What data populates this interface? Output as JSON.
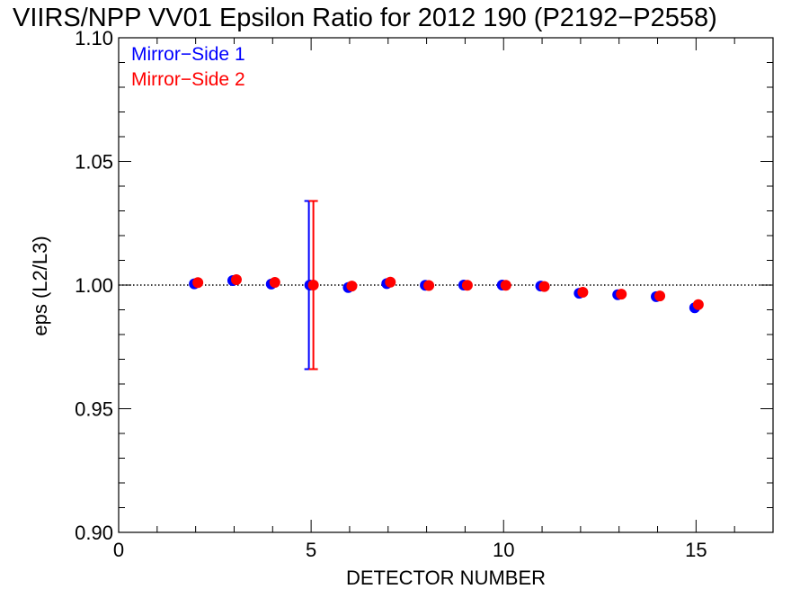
{
  "chart_data": {
    "type": "scatter",
    "title": "VIIRS/NPP VV01 Epsilon Ratio for 2012 190 (P2192−P2558)",
    "xlabel": "DETECTOR NUMBER",
    "ylabel": "eps (L2/L3)",
    "xlim": [
      0,
      17
    ],
    "ylim": [
      0.9,
      1.1
    ],
    "xticks": [
      0,
      5,
      10,
      15
    ],
    "xtick_labels": [
      "0",
      "5",
      "10",
      "15"
    ],
    "yticks": [
      0.9,
      0.95,
      1.0,
      1.05,
      1.1
    ],
    "ytick_labels": [
      "0.90",
      "0.95",
      "1.00",
      "1.05",
      "1.10"
    ],
    "reference_line": 1.0,
    "legend_position": "top-left",
    "series": [
      {
        "name": "Mirror−Side 1",
        "color": "#0000ff",
        "x": [
          2,
          3,
          4,
          5,
          6,
          7,
          8,
          9,
          10,
          11,
          12,
          13,
          14,
          15
        ],
        "y": [
          1.0005,
          1.0018,
          1.0004,
          1.0,
          0.999,
          1.0006,
          0.9999,
          1.0,
          1.0,
          0.9996,
          0.9967,
          0.9961,
          0.9953,
          0.9908
        ],
        "error_bar": {
          "x": 5,
          "low": 0.966,
          "high": 1.034
        }
      },
      {
        "name": "Mirror−Side 2",
        "color": "#ff0000",
        "x": [
          2,
          3,
          4,
          5,
          6,
          7,
          8,
          9,
          10,
          11,
          12,
          13,
          14,
          15
        ],
        "y": [
          1.001,
          1.0022,
          1.0011,
          1.0,
          0.9996,
          1.0012,
          0.9998,
          0.9999,
          0.9999,
          0.9994,
          0.9971,
          0.9963,
          0.9956,
          0.9921
        ],
        "error_bar": {
          "x": 5,
          "low": 0.966,
          "high": 1.034
        }
      }
    ]
  }
}
